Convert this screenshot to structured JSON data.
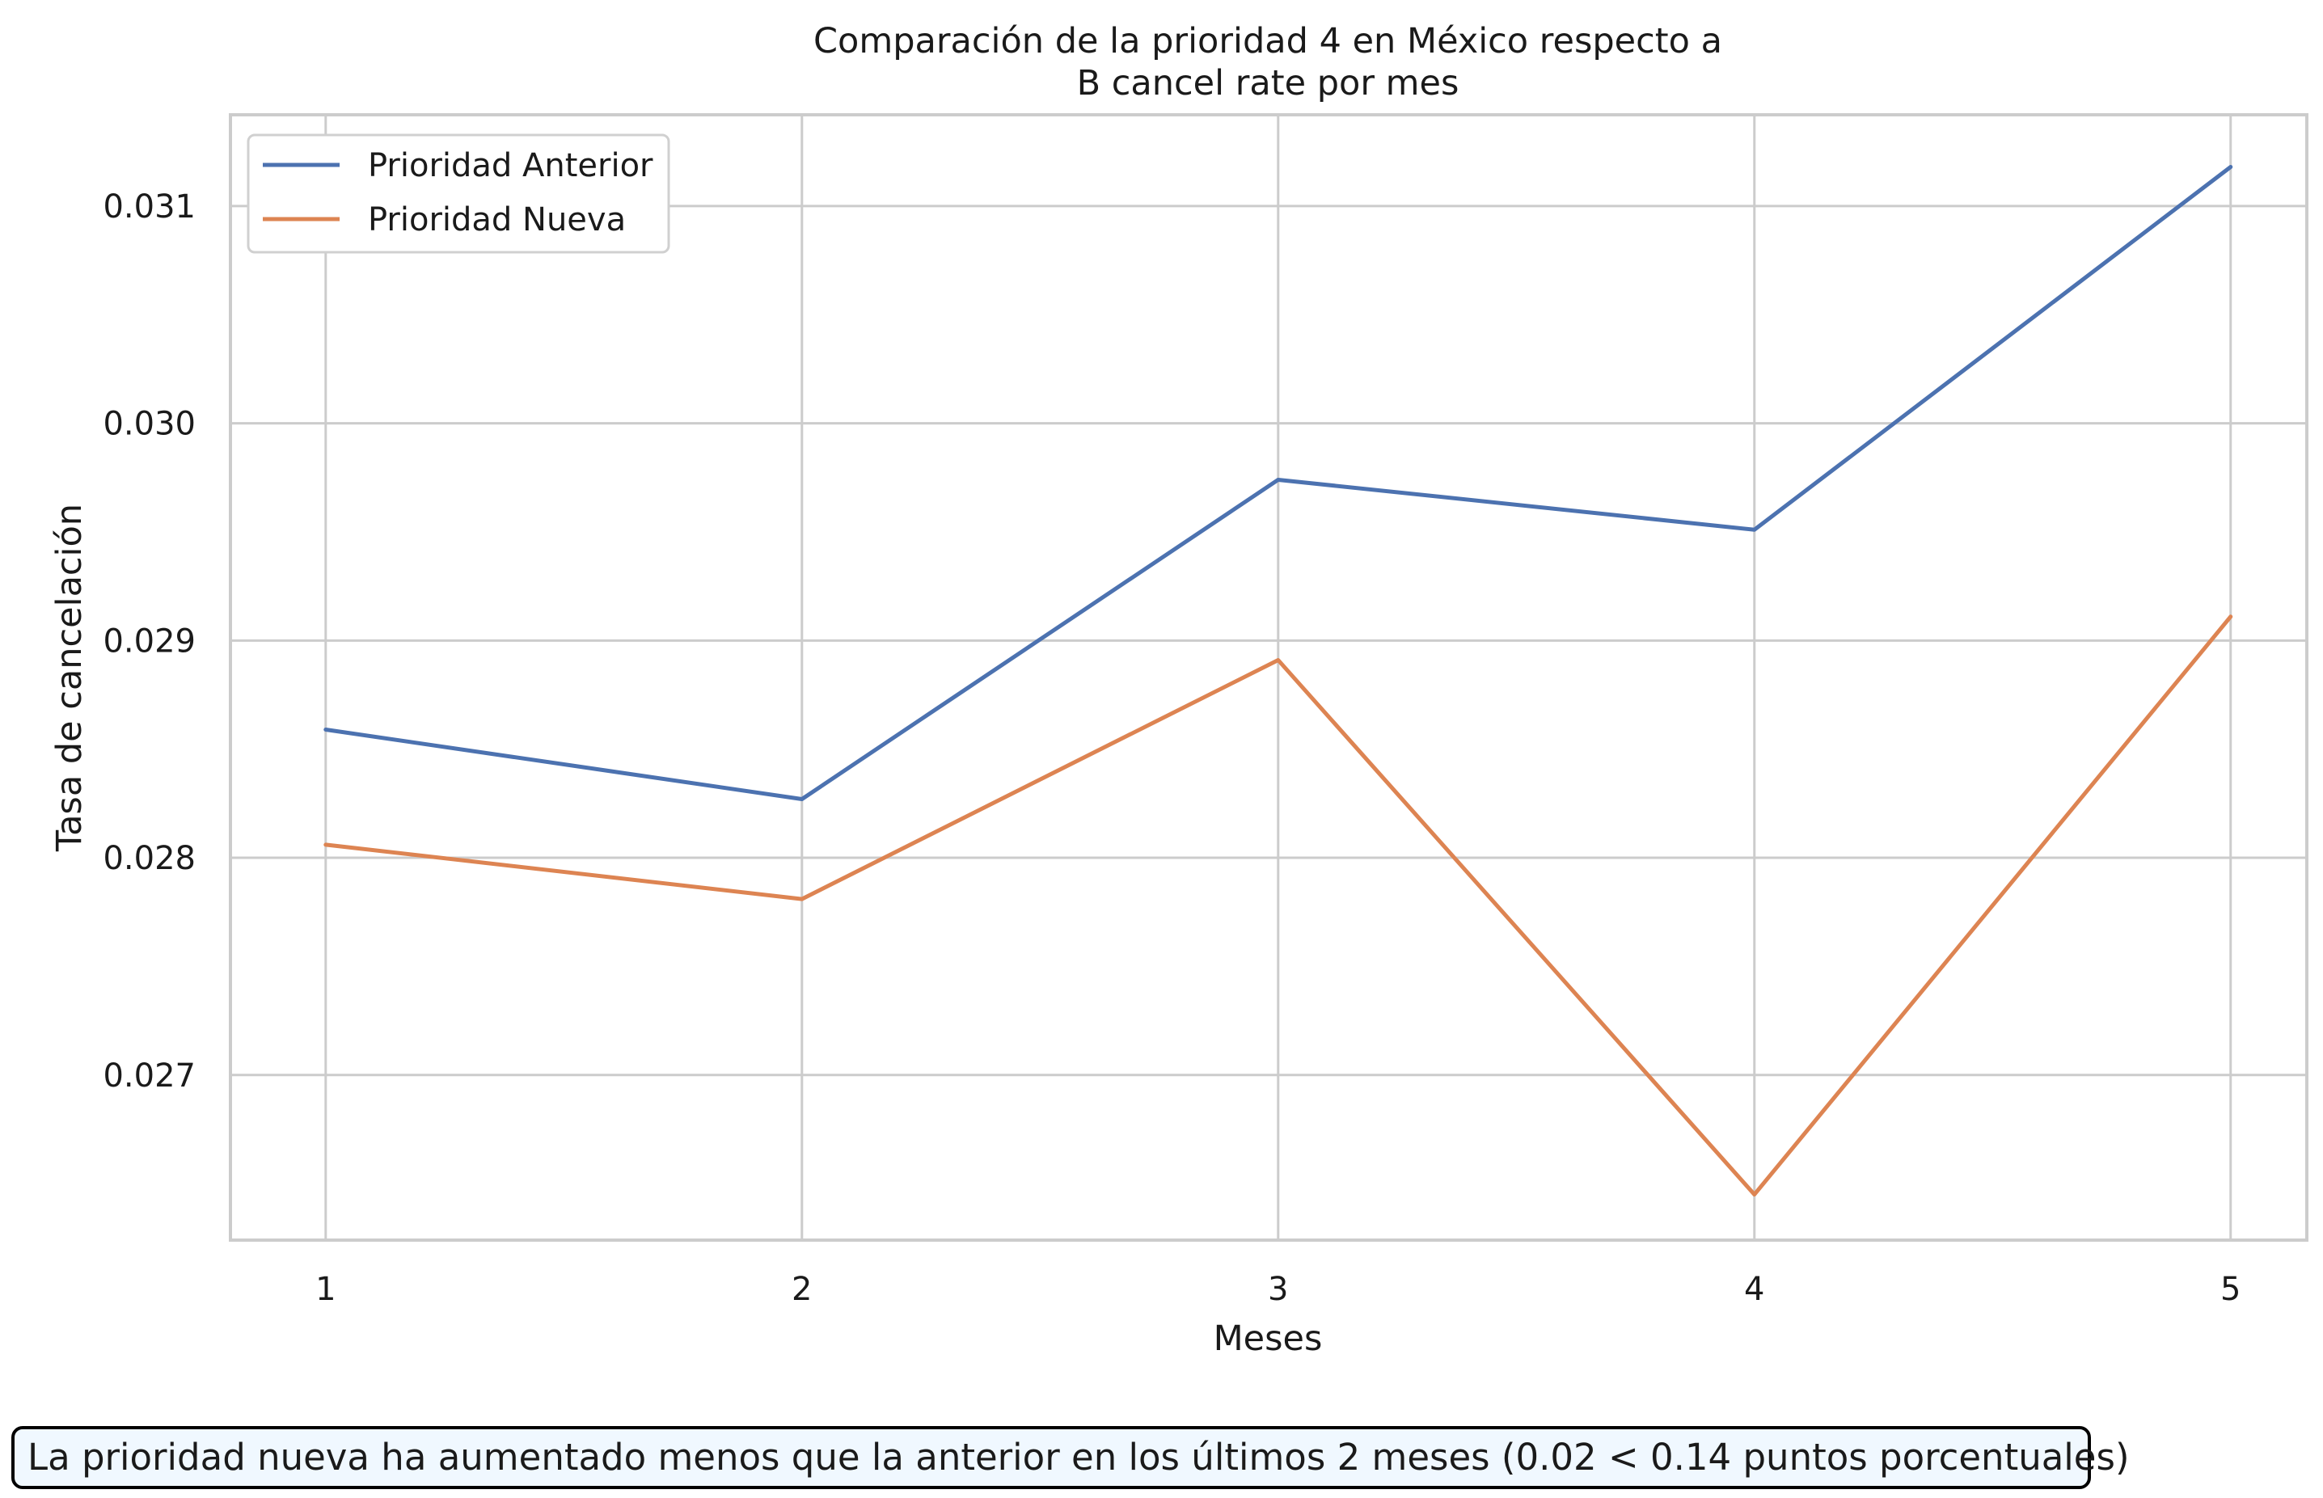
{
  "chart_data": {
    "type": "line",
    "title_lines": [
      "Comparación de la prioridad 4 en México respecto a",
      "B cancel rate por mes"
    ],
    "xlabel": "Meses",
    "ylabel": "Tasa de cancelación",
    "x": [
      1,
      2,
      3,
      4,
      5
    ],
    "xticks": [
      "1",
      "2",
      "3",
      "4",
      "5"
    ],
    "yticks": [
      "0.027",
      "0.028",
      "0.029",
      "0.030",
      "0.031"
    ],
    "ylim": [
      0.02624,
      0.03142
    ],
    "xlim": [
      0.8,
      5.16
    ],
    "grid": true,
    "legend_position": "top-left",
    "series": [
      {
        "name": "Prioridad Anterior",
        "color": "#4c72b0",
        "values": [
          0.02859,
          0.02827,
          0.02974,
          0.02951,
          0.03118
        ]
      },
      {
        "name": "Prioridad Nueva",
        "color": "#dd8452",
        "values": [
          0.02806,
          0.02781,
          0.02891,
          0.02645,
          0.02911
        ]
      }
    ],
    "annotation": "La prioridad nueva ha aumentado menos que la anterior en los últimos 2 meses (0.02 < 0.14 puntos porcentuales)"
  }
}
